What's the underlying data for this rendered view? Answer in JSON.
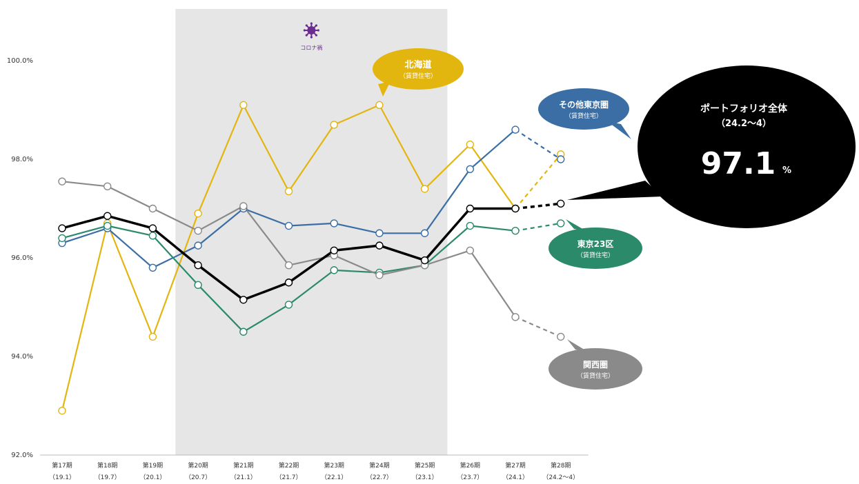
{
  "chart_data": {
    "type": "line",
    "title": "",
    "xlabel": "",
    "ylabel": "",
    "ylim": [
      92.0,
      100.0
    ],
    "yticks": [
      "92.0%",
      "94.0%",
      "96.0%",
      "98.0%",
      "100.0%"
    ],
    "yticks_values": [
      92,
      94,
      96,
      98,
      100
    ],
    "grid": false,
    "categories": [
      {
        "period": "第17期",
        "date": "（19.1）"
      },
      {
        "period": "第18期",
        "date": "（19.7）"
      },
      {
        "period": "第19期",
        "date": "（20.1）"
      },
      {
        "period": "第20期",
        "date": "（20.7）"
      },
      {
        "period": "第21期",
        "date": "（21.1）"
      },
      {
        "period": "第22期",
        "date": "（21.7）"
      },
      {
        "period": "第23期",
        "date": "（22.1）"
      },
      {
        "period": "第24期",
        "date": "（22.7）"
      },
      {
        "period": "第25期",
        "date": "（23.1）"
      },
      {
        "period": "第26期",
        "date": "（23.7）"
      },
      {
        "period": "第27期",
        "date": "（24.1）"
      },
      {
        "period": "第28期",
        "date": "（24.2～4）"
      }
    ],
    "shaded_region": {
      "from_index": 2.5,
      "to_index": 8.5,
      "label": "コロナ禍"
    },
    "series": [
      {
        "name": "北海道",
        "subtitle": "（賃貸住宅）",
        "color": "#E3B50F",
        "values": [
          92.9,
          96.7,
          94.4,
          96.9,
          99.1,
          97.35,
          98.7,
          99.1,
          97.4,
          98.3,
          97.0,
          98.1
        ]
      },
      {
        "name": "その他東京圏",
        "subtitle": "（賃貸住宅）",
        "color": "#3A6EA5",
        "values": [
          96.3,
          96.6,
          95.8,
          96.25,
          97.0,
          96.65,
          96.7,
          96.5,
          96.5,
          97.8,
          98.6,
          98.0
        ]
      },
      {
        "name": "東京23区",
        "subtitle": "（賃貸住宅）",
        "color": "#2A8A6A",
        "values": [
          96.4,
          96.65,
          96.45,
          95.45,
          94.5,
          95.05,
          95.75,
          95.7,
          95.85,
          96.65,
          96.55,
          96.7
        ]
      },
      {
        "name": "関西圏",
        "subtitle": "（賃貸住宅）",
        "color": "#8A8A8A",
        "values": [
          97.55,
          97.45,
          97.0,
          96.55,
          97.05,
          95.85,
          96.05,
          95.65,
          95.85,
          96.15,
          94.8,
          94.4
        ]
      },
      {
        "name": "ポートフォリオ全体",
        "subtitle": "（24.2～4）",
        "color": "#000000",
        "values": [
          96.6,
          96.85,
          96.6,
          95.85,
          95.15,
          95.5,
          96.15,
          96.25,
          95.95,
          97.0,
          97.0,
          97.1
        ]
      }
    ],
    "annotations": {
      "portfolio_value": "97.1",
      "portfolio_unit": "%"
    }
  }
}
